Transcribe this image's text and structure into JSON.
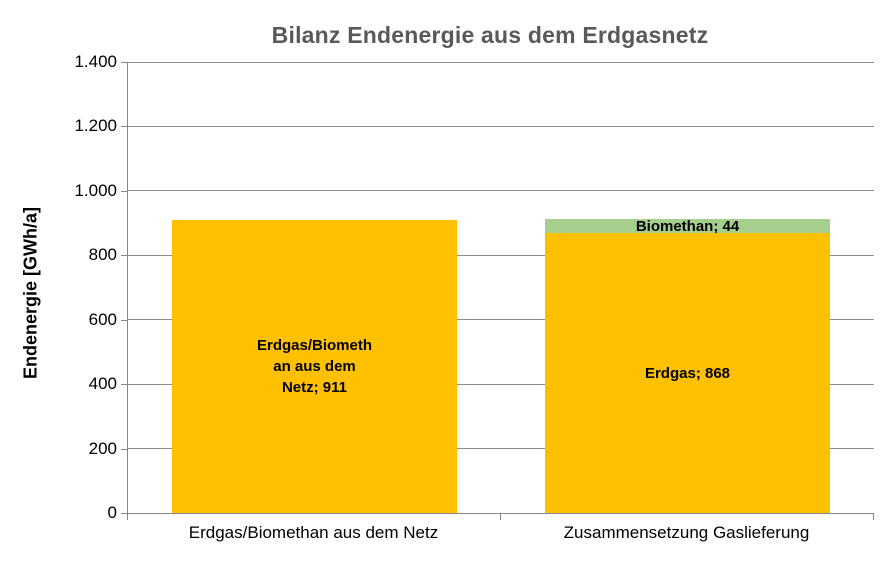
{
  "chart_data": {
    "type": "bar",
    "stacked": true,
    "title": "Bilanz Endenergie aus dem Erdgasnetz",
    "xlabel": "",
    "ylabel": "Endenergie [GWh/a]",
    "ylim": [
      0,
      1400
    ],
    "ytick_interval": 200,
    "ytick_labels": [
      "0",
      "200",
      "400",
      "600",
      "800",
      "1.000",
      "1.200",
      "1.400"
    ],
    "grid": true,
    "legend": "none",
    "categories": [
      "Erdgas/Biomethan aus dem Netz",
      "Zusammensetzung Gaslieferung"
    ],
    "series": [
      {
        "name": "Erdgas",
        "color": "#FFC000",
        "values": [
          911,
          868
        ],
        "labels": [
          [
            "Erdgas/Biometh",
            "an aus dem",
            "Netz; 911"
          ],
          [
            "Erdgas; 868"
          ]
        ]
      },
      {
        "name": "Biomethan",
        "color": "#A6CE8D",
        "values": [
          0,
          44
        ],
        "labels": [
          null,
          [
            "Biomethan; 44"
          ]
        ]
      }
    ]
  },
  "colors": {
    "title": "#595959",
    "gridline": "#8c8c8c",
    "axis": "#868686",
    "bar_gold": "#FFC000",
    "bar_green": "#A6CE8D",
    "label_text": "#000000"
  }
}
